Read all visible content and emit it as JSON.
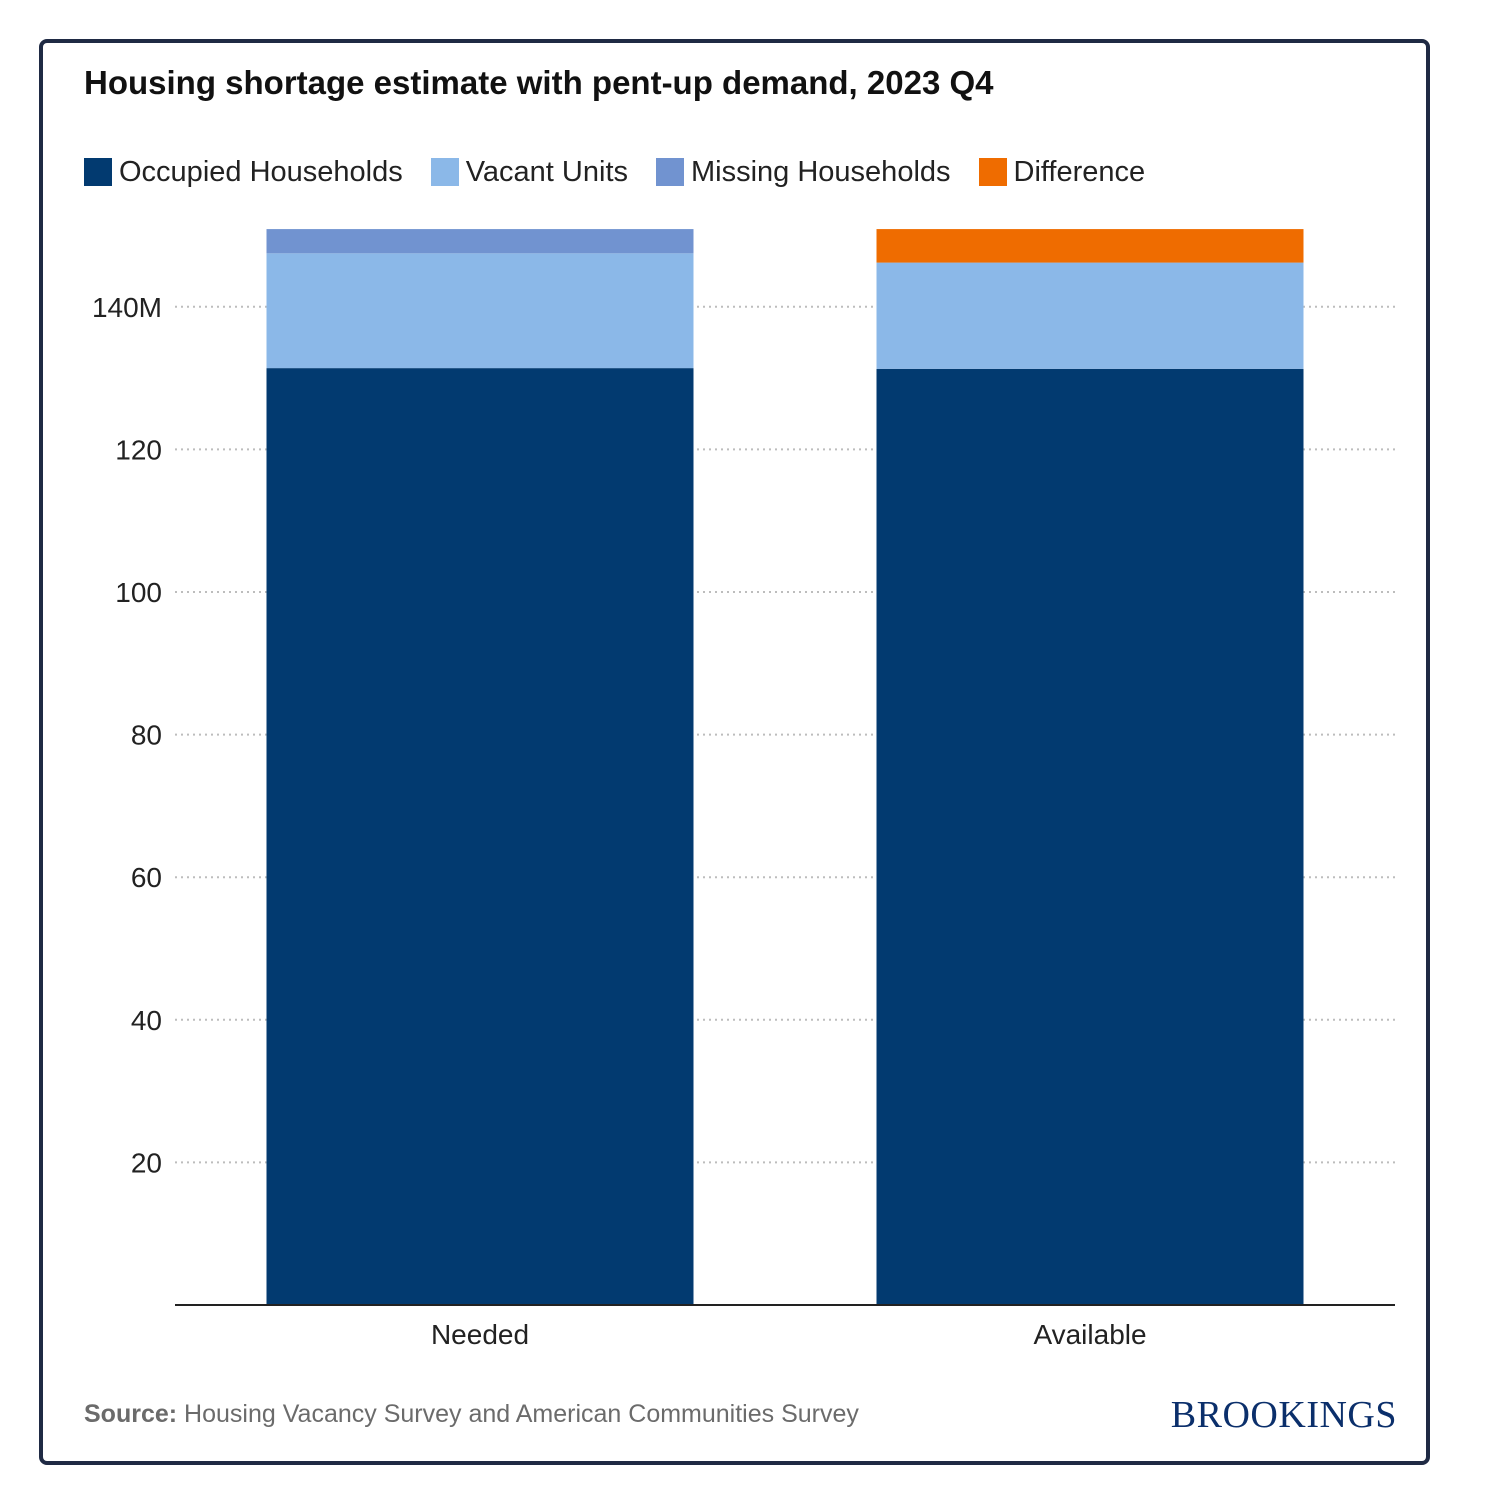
{
  "chart_data": {
    "type": "bar",
    "stacked": true,
    "title": "Housing shortage estimate with pent-up demand, 2023 Q4",
    "categories": [
      "Needed",
      "Available"
    ],
    "series": [
      {
        "name": "Occupied Households",
        "color": "#023a70",
        "values": [
          131.4,
          131.3
        ]
      },
      {
        "name": "Vacant Units",
        "color": "#8bb8e8",
        "values": [
          16.1,
          14.9
        ]
      },
      {
        "name": "Missing Households",
        "color": "#7193d0",
        "values": [
          3.4,
          0
        ]
      },
      {
        "name": "Difference",
        "color": "#ef6c00",
        "values": [
          0,
          4.7
        ]
      }
    ],
    "y_ticks": [
      {
        "value": 20,
        "label": "20"
      },
      {
        "value": 40,
        "label": "40"
      },
      {
        "value": 60,
        "label": "60"
      },
      {
        "value": 80,
        "label": "80"
      },
      {
        "value": 100,
        "label": "100"
      },
      {
        "value": 120,
        "label": "120"
      },
      {
        "value": 140,
        "label": "140M"
      }
    ],
    "ylim": [
      0,
      151
    ],
    "xlabel": "",
    "ylabel": "",
    "grid": "horizontal dotted",
    "legend_position": "top-left"
  },
  "footer": {
    "source_label": "Source:",
    "source_text": "Housing Vacancy Survey and American Communities Survey",
    "brand": "BROOKINGS"
  }
}
